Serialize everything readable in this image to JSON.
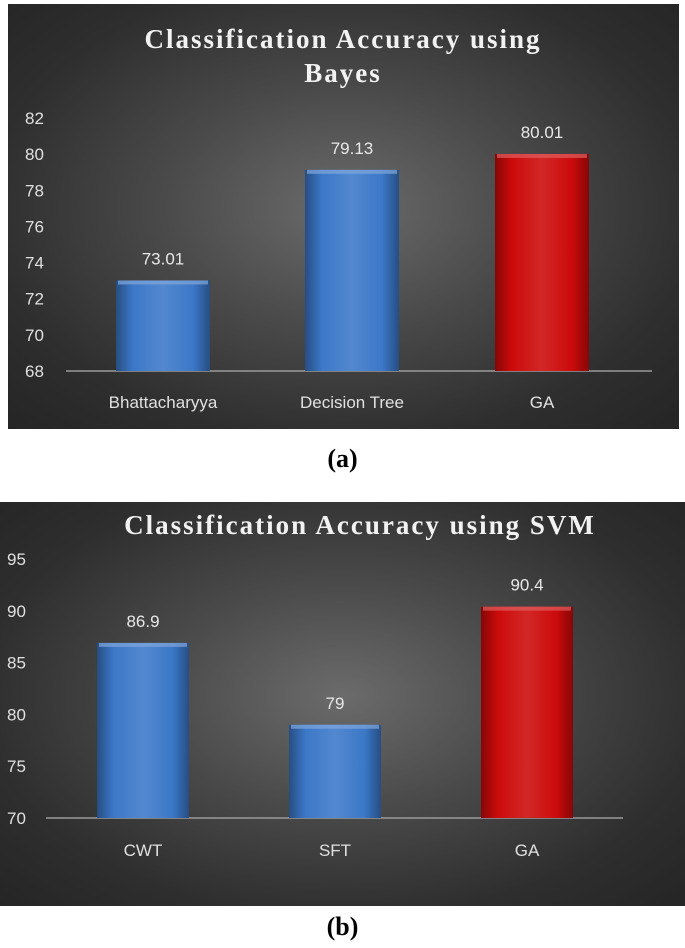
{
  "chart_data": [
    {
      "type": "bar",
      "title_lines": [
        "Classification Accuracy using",
        "Bayes"
      ],
      "categories": [
        "Bhattacharyya",
        "Decision Tree",
        "GA"
      ],
      "values": [
        73.01,
        79.13,
        80.01
      ],
      "value_labels": [
        "73.01",
        "79.13",
        "80.01"
      ],
      "bar_colors": [
        "#3b78c8",
        "#3b78c8",
        "#cc0a0a"
      ],
      "ylim": [
        68,
        82
      ],
      "yticks": [
        "68",
        "70",
        "72",
        "74",
        "76",
        "78",
        "80",
        "82"
      ],
      "ytick_values": [
        68,
        70,
        72,
        74,
        76,
        78,
        80,
        82
      ],
      "grid": false,
      "caption": "(a)"
    },
    {
      "type": "bar",
      "title_lines": [
        "Classification Accuracy using SVM"
      ],
      "categories": [
        "CWT",
        "SFT",
        "GA"
      ],
      "values": [
        86.9,
        79,
        90.4
      ],
      "value_labels": [
        "86.9",
        "79",
        "90.4"
      ],
      "bar_colors": [
        "#3b78c8",
        "#3b78c8",
        "#cc0a0a"
      ],
      "ylim": [
        70,
        95
      ],
      "yticks": [
        "70",
        "75",
        "80",
        "85",
        "90",
        "95"
      ],
      "ytick_values": [
        70,
        75,
        80,
        85,
        90,
        95
      ],
      "grid": false,
      "caption": "(b)"
    }
  ]
}
